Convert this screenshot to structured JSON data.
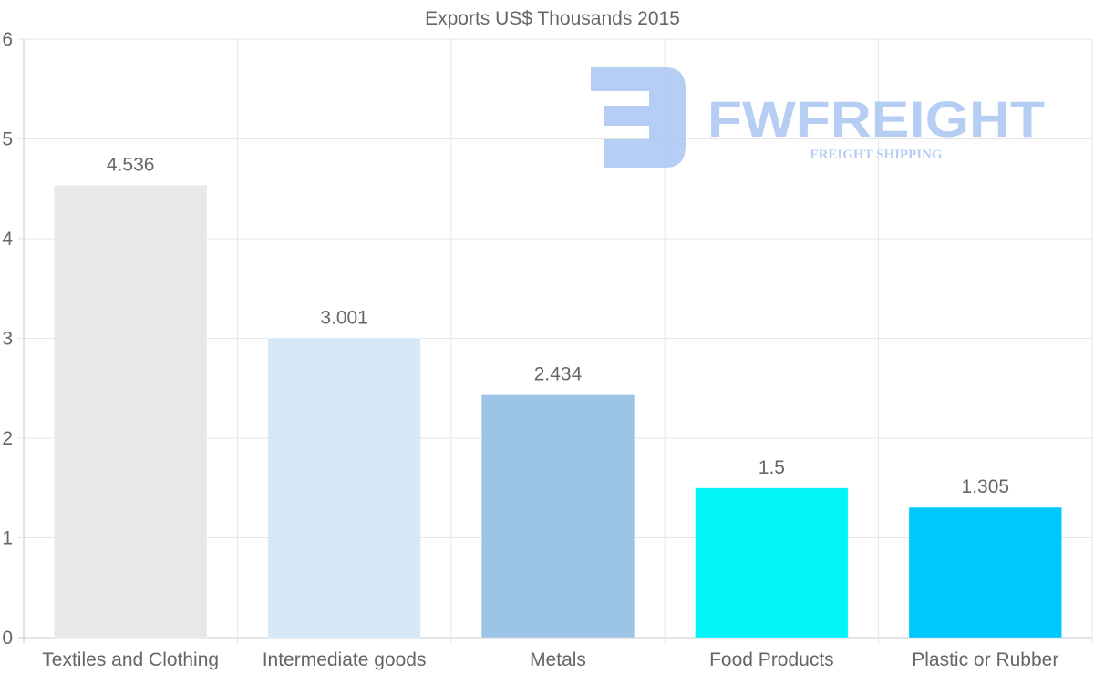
{
  "chart_data": {
    "type": "bar",
    "title": "Exports US$ Thousands 2015",
    "categories": [
      "Textiles and Clothing",
      "Intermediate goods",
      "Metals",
      "Food Products",
      "Plastic or Rubber"
    ],
    "values": [
      4.536,
      3.001,
      2.434,
      1.5,
      1.305
    ],
    "value_labels": [
      "4.536",
      "3.001",
      "2.434",
      "1.5",
      "1.305"
    ],
    "colors": [
      "#e8e8e8",
      "#d6e8f8",
      "#9cc4e6",
      "#00f4f8",
      "#00c8fc"
    ],
    "ylim": [
      0,
      6
    ],
    "yticks": [
      "0",
      "1",
      "2",
      "3",
      "4",
      "5",
      "6"
    ],
    "xlabel": "",
    "ylabel": "",
    "grid": true
  },
  "watermark": {
    "brand": "FWFREIGHT",
    "tagline": "FREIGHT SHIPPING",
    "color": "#aac6f2"
  }
}
